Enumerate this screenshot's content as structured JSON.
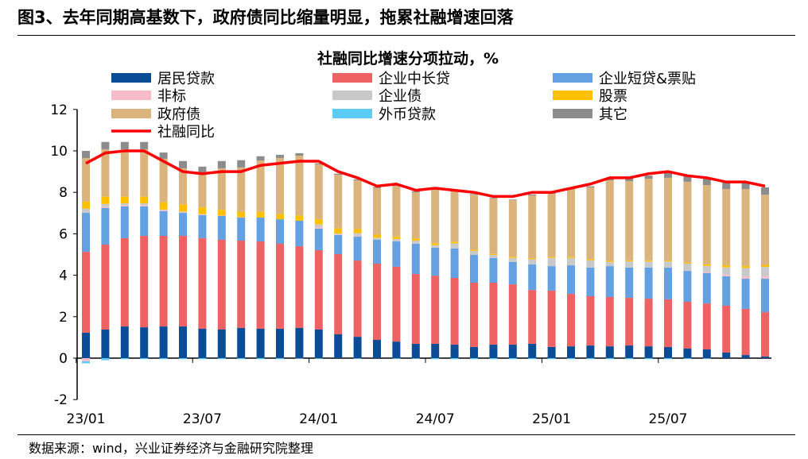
{
  "figure_title": "图3、去年同期高基数下，政府债同比缩量明显，拖累社融增速回落",
  "source": "数据来源：wind，兴业证券经济与金融研究院整理",
  "chart_data": {
    "type": "bar",
    "stacked": true,
    "title": "社融同比增速分项拉动，%",
    "xlabel": "",
    "ylabel": "",
    "ylim": [
      -2,
      12
    ],
    "yticks": [
      -2,
      0,
      2,
      4,
      6,
      8,
      10,
      12
    ],
    "xtick_labels": [
      "23/01",
      "23/07",
      "24/01",
      "24/07",
      "25/01",
      "25/07"
    ],
    "grid": false,
    "legend": "top",
    "categories": [
      "23/01",
      "23/02",
      "23/03",
      "23/04",
      "23/05",
      "23/06",
      "23/07",
      "23/08",
      "23/09",
      "23/10",
      "23/11",
      "23/12",
      "24/01",
      "24/02",
      "24/03",
      "24/04",
      "24/05",
      "24/06",
      "24/07",
      "24/08",
      "24/09",
      "24/10",
      "24/11",
      "24/12",
      "25/01",
      "25/02",
      "25/03",
      "25/04",
      "25/05",
      "25/06",
      "25/07",
      "25/08",
      "25/09",
      "25/10",
      "25/11",
      "25/12"
    ],
    "series": [
      {
        "name": "居民贷款",
        "color": "#0B4C97",
        "values": [
          1.23,
          1.38,
          1.53,
          1.49,
          1.53,
          1.53,
          1.42,
          1.38,
          1.46,
          1.42,
          1.42,
          1.46,
          1.38,
          1.15,
          1.03,
          0.88,
          0.8,
          0.69,
          0.69,
          0.65,
          0.54,
          0.65,
          0.65,
          0.69,
          0.54,
          0.57,
          0.61,
          0.57,
          0.61,
          0.57,
          0.54,
          0.46,
          0.42,
          0.27,
          0.15,
          0.08
        ]
      },
      {
        "name": "企业中长贷",
        "color": "#EF6264",
        "values": [
          3.9,
          4.1,
          4.26,
          4.41,
          4.37,
          4.37,
          4.37,
          4.33,
          4.21,
          4.21,
          4.1,
          3.94,
          3.83,
          3.87,
          3.68,
          3.68,
          3.61,
          3.37,
          3.29,
          3.22,
          3.1,
          2.99,
          2.91,
          2.6,
          2.72,
          2.53,
          2.38,
          2.38,
          2.3,
          2.3,
          2.3,
          2.26,
          2.22,
          2.26,
          2.23,
          2.14
        ]
      },
      {
        "name": "企业短贷&票贴",
        "color": "#63A1E3",
        "values": [
          1.88,
          1.76,
          1.53,
          1.42,
          1.19,
          1.11,
          1.11,
          1.15,
          1.11,
          1.15,
          1.18,
          1.23,
          1.04,
          0.92,
          1.15,
          1.15,
          1.22,
          1.46,
          1.35,
          1.42,
          1.34,
          1.19,
          1.08,
          1.23,
          1.18,
          1.38,
          1.38,
          1.49,
          1.46,
          1.5,
          1.53,
          1.49,
          1.46,
          1.42,
          1.45,
          1.61
        ]
      },
      {
        "name": "非标",
        "color": "#F8BCC8",
        "values": [
          -0.15,
          0.05,
          0.05,
          0.05,
          0.05,
          0.03,
          0.05,
          0.02,
          0.02,
          0,
          0,
          0,
          0.05,
          0.02,
          0.02,
          0,
          0,
          0,
          0,
          0,
          0,
          0,
          0,
          0,
          0,
          0,
          0,
          0,
          0,
          0,
          0,
          0,
          0.05,
          0.08,
          0.12,
          0.12
        ]
      },
      {
        "name": "企业债",
        "color": "#C9C9C9",
        "values": [
          0.2,
          0.15,
          0.1,
          0.1,
          0.03,
          0.03,
          0,
          0,
          0,
          0,
          0,
          0,
          0.15,
          0.05,
          0.15,
          0.1,
          0.12,
          0.15,
          0.12,
          0.25,
          0.2,
          0.15,
          0.2,
          0.25,
          0.4,
          0.35,
          0.35,
          0.2,
          0.3,
          0.3,
          0.3,
          0.35,
          0.3,
          0.35,
          0.4,
          0.45
        ]
      },
      {
        "name": "股票",
        "color": "#FFC000",
        "values": [
          0.35,
          0.35,
          0.32,
          0.32,
          0.35,
          0.35,
          0.32,
          0.28,
          0.25,
          0.28,
          0.25,
          0.25,
          0.25,
          0.25,
          0.2,
          0.15,
          0.12,
          0.1,
          0.1,
          0.08,
          0.05,
          0.05,
          0.05,
          0.05,
          0.05,
          0.05,
          0.05,
          0.05,
          0.05,
          0.05,
          0.05,
          0.05,
          0.08,
          0.1,
          0.1,
          0.1
        ]
      },
      {
        "name": "政府债",
        "color": "#DBB37D",
        "values": [
          2.09,
          2.29,
          2.29,
          2.29,
          2.1,
          1.74,
          1.62,
          2.0,
          2.15,
          2.48,
          2.71,
          2.89,
          2.65,
          2.59,
          2.35,
          2.24,
          2.44,
          2.23,
          2.57,
          2.46,
          2.66,
          2.67,
          2.73,
          3.03,
          3.04,
          3.28,
          3.47,
          3.89,
          3.82,
          3.94,
          3.98,
          3.9,
          3.82,
          3.68,
          3.71,
          3.39
        ]
      },
      {
        "name": "外币贷款",
        "color": "#5CCBF5",
        "values": [
          -0.1,
          -0.1,
          -0.05,
          -0.05,
          -0.05,
          -0.05,
          -0.05,
          -0.05,
          -0.05,
          -0.05,
          -0.05,
          -0.02,
          -0.02,
          0,
          -0.02,
          0,
          -0.02,
          -0.02,
          -0.05,
          -0.05,
          -0.05,
          -0.05,
          -0.05,
          -0.05,
          -0.05,
          -0.05,
          -0.05,
          -0.05,
          -0.05,
          -0.05,
          -0.05,
          -0.03,
          -0.02,
          0,
          0,
          0
        ]
      },
      {
        "name": "其它",
        "color": "#8C8C8C",
        "values": [
          0.35,
          0.35,
          0.35,
          0.35,
          0.3,
          0.35,
          0.35,
          0.35,
          0.35,
          0.2,
          0.15,
          0.12,
          0.05,
          0.05,
          0.05,
          0.05,
          0.05,
          0.05,
          0.03,
          0.03,
          0.03,
          0.03,
          0.03,
          0.05,
          0.05,
          0.05,
          0.05,
          0.1,
          0.15,
          0.15,
          0.25,
          0.3,
          0.3,
          0.3,
          0.3,
          0.35
        ]
      }
    ],
    "line": {
      "name": "社融同比",
      "color": "#FF0000",
      "values": [
        9.4,
        9.9,
        10.0,
        10.0,
        9.5,
        9.0,
        8.9,
        9.0,
        9.0,
        9.3,
        9.4,
        9.5,
        9.5,
        9.0,
        8.7,
        8.3,
        8.4,
        8.1,
        8.2,
        8.1,
        8.0,
        7.8,
        7.8,
        8.0,
        8.0,
        8.2,
        8.4,
        8.7,
        8.7,
        8.9,
        9.0,
        8.8,
        8.7,
        8.5,
        8.5,
        8.3
      ]
    }
  }
}
